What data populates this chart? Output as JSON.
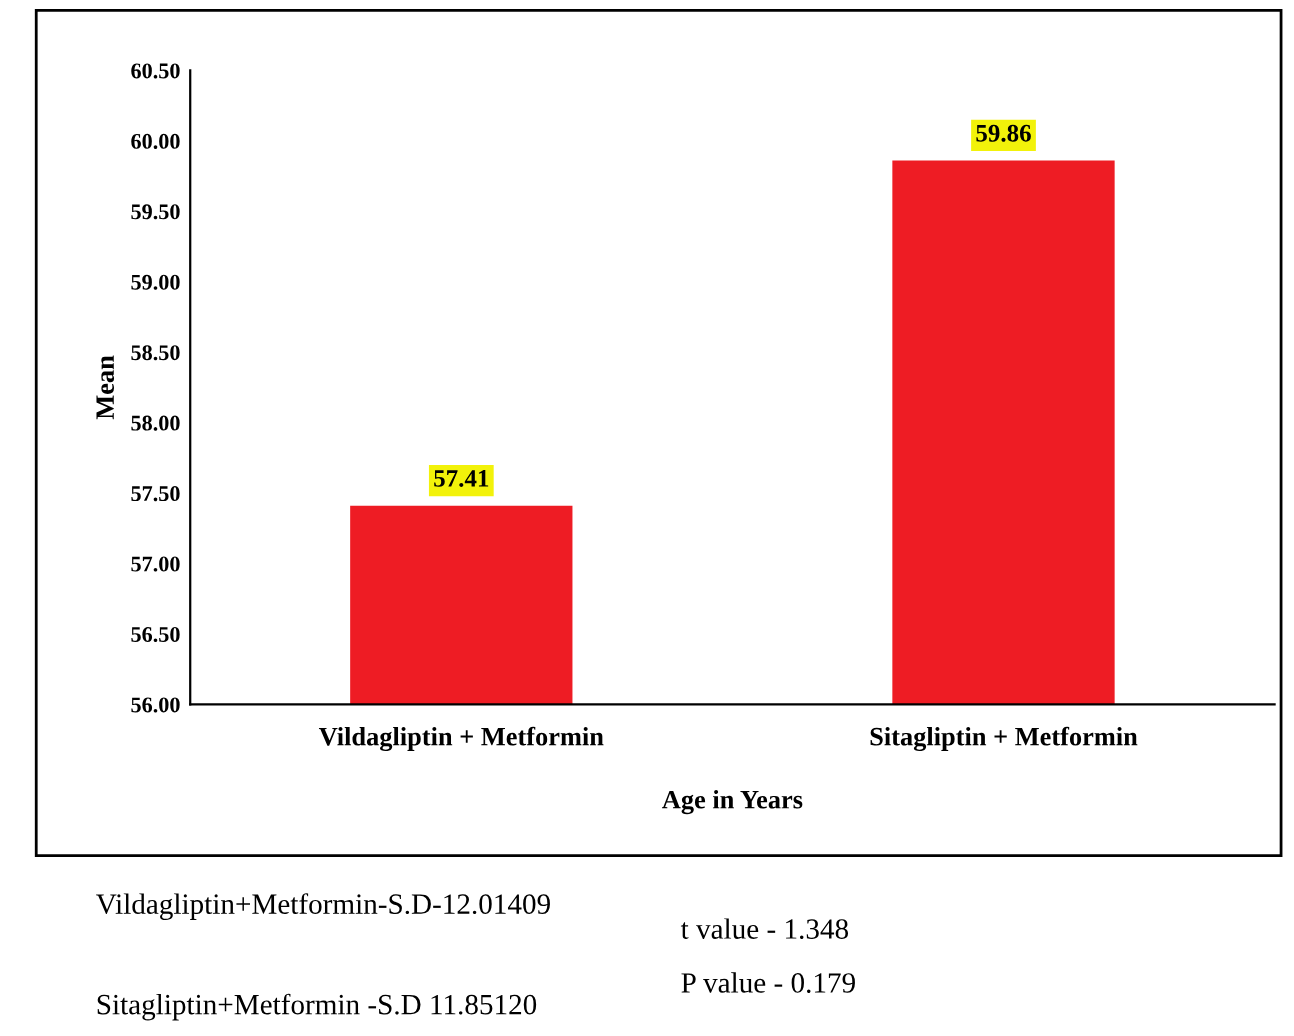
{
  "chart_data": {
    "type": "bar",
    "categories": [
      "Vildagliptin + Metformin",
      "Sitagliptin + Metformin"
    ],
    "values": [
      57.41,
      59.86
    ],
    "color": "#ee1c24",
    "xlabel": "Age in Years",
    "ylabel": "Mean",
    "ylim": [
      56,
      60.5
    ],
    "yticks": [
      {
        "value": 56,
        "label": "56.00"
      },
      {
        "value": 56.5,
        "label": "56.50"
      },
      {
        "value": 57,
        "label": "57.00"
      },
      {
        "value": 57.5,
        "label": "57.50"
      },
      {
        "value": 58,
        "label": "58.00"
      },
      {
        "value": 58.5,
        "label": "58.50"
      },
      {
        "value": 59,
        "label": "59.00"
      },
      {
        "value": 59.5,
        "label": "59.50"
      },
      {
        "value": 60,
        "label": "60.00"
      },
      {
        "value": 60.5,
        "label": "60.50"
      }
    ],
    "value_labels": [
      "57.41",
      "59.86"
    ],
    "grid": false,
    "legend": false,
    "annotations": [
      "Vildagliptin+Metformin-S.D-12.01409",
      "t value - 1.348",
      "Sitagliptin+Metformin -S.D 11.85120",
      "P value - 0.179"
    ]
  }
}
